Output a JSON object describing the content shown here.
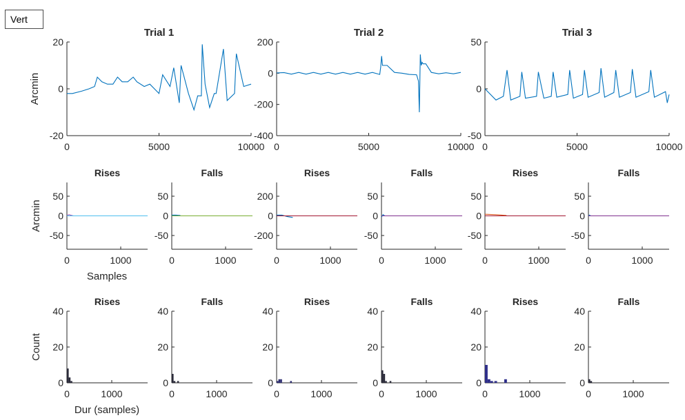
{
  "vert_label": "Vert",
  "chart_data": [
    {
      "type": "line",
      "title": "Trial 1",
      "ylabel": "Arcmin",
      "xlim": [
        0,
        10000
      ],
      "ylim": [
        -20,
        20
      ],
      "xticks": [
        "0",
        "5000",
        "10000"
      ],
      "yticks": [
        "-20",
        "0",
        "20"
      ],
      "color": "#0072bd",
      "series": [
        {
          "name": "",
          "x": [
            0,
            300,
            800,
            1200,
            1500,
            1650,
            1900,
            2200,
            2500,
            2750,
            3000,
            3300,
            3600,
            3800,
            4200,
            4500,
            5000,
            5200,
            5600,
            5800,
            6100,
            6200,
            6600,
            6900,
            7100,
            7300,
            7350,
            7500,
            7750,
            8000,
            8100,
            8500,
            8700,
            9100,
            9200,
            9600,
            10000
          ],
          "y": [
            -2,
            -2,
            -1,
            0,
            1,
            5,
            3,
            2,
            2,
            5,
            3,
            3,
            5,
            3,
            1,
            2,
            -2,
            6,
            1,
            9,
            -6,
            10,
            -2,
            -9,
            -3,
            -3,
            19,
            2,
            -8,
            -2,
            -2,
            17,
            -5,
            -2,
            15,
            1,
            2
          ]
        }
      ]
    },
    {
      "type": "line",
      "title": "Trial 2",
      "ylabel": "",
      "xlim": [
        0,
        10000
      ],
      "ylim": [
        -400,
        200
      ],
      "xticks": [
        "0",
        "5000",
        "10000"
      ],
      "yticks": [
        "-400",
        "-200",
        "0",
        "200"
      ],
      "color": "#0072bd",
      "series": [
        {
          "name": "",
          "x": [
            0,
            400,
            800,
            1200,
            1600,
            2000,
            2400,
            2800,
            3200,
            3600,
            4000,
            4400,
            4800,
            5200,
            5600,
            5650,
            5700,
            5750,
            6000,
            6400,
            6800,
            7200,
            7600,
            7700,
            7750,
            7800,
            7850,
            7900,
            7950,
            8000,
            8100,
            8400,
            8800,
            9200,
            9600,
            10000
          ],
          "y": [
            2,
            4,
            -6,
            5,
            -6,
            5,
            -6,
            5,
            -6,
            5,
            -6,
            5,
            -6,
            5,
            -8,
            40,
            110,
            50,
            50,
            5,
            0,
            -8,
            -10,
            -50,
            -250,
            120,
            50,
            70,
            60,
            60,
            60,
            5,
            -4,
            3,
            -4,
            5
          ]
        }
      ]
    },
    {
      "type": "line",
      "title": "Trial 3",
      "ylabel": "",
      "xlim": [
        0,
        10000
      ],
      "ylim": [
        -50,
        50
      ],
      "xticks": [
        "0",
        "5000",
        "10000"
      ],
      "yticks": [
        "-50",
        "0",
        "50"
      ],
      "color": "#0072bd",
      "series": [
        {
          "name": "",
          "x": [
            0,
            600,
            1000,
            1200,
            1400,
            1900,
            2000,
            2200,
            2800,
            2900,
            3200,
            3600,
            3700,
            3900,
            4500,
            4600,
            4800,
            5300,
            5400,
            5600,
            6200,
            6300,
            6500,
            7000,
            7100,
            7300,
            7900,
            8000,
            8200,
            8900,
            9000,
            9200,
            9800,
            9900,
            10000
          ],
          "y": [
            0,
            -12,
            -8,
            20,
            -12,
            -8,
            18,
            -10,
            -8,
            18,
            -10,
            -8,
            18,
            -9,
            -6,
            20,
            -10,
            -6,
            20,
            -9,
            -4,
            22,
            -9,
            -4,
            20,
            -9,
            -4,
            21,
            -9,
            -3,
            20,
            -9,
            -3,
            -15,
            -6
          ]
        }
      ]
    },
    {
      "type": "line",
      "title": "Rises",
      "ylabel": "Arcmin",
      "xlabel": "Samples",
      "xlim": [
        0,
        1500
      ],
      "ylim": [
        -85,
        85
      ],
      "xticks": [
        "0",
        "1000"
      ],
      "yticks": [
        "50",
        "0",
        "-50"
      ],
      "series": [
        {
          "name": "",
          "color": "#9b59b6",
          "x": [
            0,
            40,
            120
          ],
          "y": [
            1,
            3,
            0
          ]
        },
        {
          "name": "",
          "color": "#4dbeee",
          "x": [
            0,
            120,
            1500
          ],
          "y": [
            0,
            0,
            0
          ]
        }
      ]
    },
    {
      "type": "line",
      "title": "Falls",
      "ylabel": "",
      "xlim": [
        0,
        1500
      ],
      "ylim": [
        -85,
        85
      ],
      "xticks": [
        "0",
        "1000"
      ],
      "yticks": [
        "50",
        "0",
        "-50"
      ],
      "series": [
        {
          "name": "",
          "color": "#0072bd",
          "x": [
            0,
            80,
            160
          ],
          "y": [
            2,
            2,
            1
          ]
        },
        {
          "name": "",
          "color": "#77ac30",
          "x": [
            0,
            160,
            1500
          ],
          "y": [
            0,
            0,
            0
          ]
        }
      ]
    },
    {
      "type": "line",
      "title": "Rises",
      "ylabel": "",
      "xlim": [
        0,
        1500
      ],
      "ylim": [
        -85,
        85
      ],
      "xticks": [
        "0",
        "1000"
      ],
      "yticks": [
        "200",
        "0",
        "-200"
      ],
      "series": [
        {
          "name": "",
          "color": "#0072bd",
          "x": [
            0,
            100,
            200,
            300
          ],
          "y": [
            2,
            2,
            -2,
            -4
          ]
        },
        {
          "name": "",
          "color": "#a2142f",
          "x": [
            0,
            300,
            1500
          ],
          "y": [
            0,
            0,
            0
          ]
        }
      ]
    },
    {
      "type": "line",
      "title": "Falls",
      "ylabel": "",
      "xlim": [
        0,
        1500
      ],
      "ylim": [
        -85,
        85
      ],
      "xticks": [
        "0",
        "1000"
      ],
      "yticks": [
        "50",
        "0",
        "-50"
      ],
      "series": [
        {
          "name": "",
          "color": "#0072bd",
          "x": [
            0,
            30,
            60
          ],
          "y": [
            -3,
            3,
            0
          ]
        },
        {
          "name": "",
          "color": "#7e2f8e",
          "x": [
            0,
            60,
            1500
          ],
          "y": [
            0,
            0,
            0
          ]
        }
      ]
    },
    {
      "type": "line",
      "title": "Rises",
      "ylabel": "",
      "xlim": [
        0,
        1500
      ],
      "ylim": [
        -85,
        85
      ],
      "xticks": [
        "0",
        "1000"
      ],
      "yticks": [
        "50",
        "0",
        "-50"
      ],
      "series": [
        {
          "name": "",
          "color": "#d95319",
          "x": [
            0,
            200,
            400
          ],
          "y": [
            4,
            3,
            1
          ]
        },
        {
          "name": "",
          "color": "#a2142f",
          "x": [
            0,
            400,
            1500
          ],
          "y": [
            0,
            0,
            0
          ]
        }
      ]
    },
    {
      "type": "line",
      "title": "Falls",
      "ylabel": "",
      "xlim": [
        0,
        1500
      ],
      "ylim": [
        -85,
        85
      ],
      "xticks": [
        "0",
        "1000"
      ],
      "yticks": [
        "50",
        "0",
        "-50"
      ],
      "series": [
        {
          "name": "",
          "color": "#0072bd",
          "x": [
            0,
            20,
            40
          ],
          "y": [
            0,
            2,
            0
          ]
        },
        {
          "name": "",
          "color": "#7e2f8e",
          "x": [
            0,
            40,
            1500
          ],
          "y": [
            0,
            0,
            0
          ]
        }
      ]
    },
    {
      "type": "bar",
      "title": "Rises",
      "ylabel": "Count",
      "xlabel": "Dur (samples)",
      "xlim": [
        0,
        1800
      ],
      "ylim": [
        0,
        40
      ],
      "xticks": [
        "0",
        "1000"
      ],
      "yticks": [
        "0",
        "20",
        "40"
      ],
      "color": "#2b2b3a",
      "bin_width": 40,
      "x": [
        20,
        60,
        100
      ],
      "values": [
        8,
        3,
        1
      ]
    },
    {
      "type": "bar",
      "title": "Falls",
      "ylabel": "",
      "xlim": [
        0,
        1800
      ],
      "ylim": [
        0,
        40
      ],
      "xticks": [
        "0",
        "1000"
      ],
      "yticks": [
        "0",
        "20",
        "40"
      ],
      "color": "#2b2b3a",
      "bin_width": 40,
      "x": [
        20,
        60,
        140
      ],
      "values": [
        5,
        1,
        1
      ]
    },
    {
      "type": "bar",
      "title": "Rises",
      "ylabel": "",
      "xlim": [
        0,
        1800
      ],
      "ylim": [
        0,
        40
      ],
      "xticks": [
        "0",
        "1000"
      ],
      "yticks": [
        "0",
        "20",
        "40"
      ],
      "color": "#2e2e72",
      "bin_width": 40,
      "x": [
        20,
        60,
        100,
        320
      ],
      "values": [
        1,
        2,
        2,
        1
      ]
    },
    {
      "type": "bar",
      "title": "Falls",
      "ylabel": "",
      "xlim": [
        0,
        1800
      ],
      "ylim": [
        0,
        40
      ],
      "xticks": [
        "0",
        "1000"
      ],
      "yticks": [
        "0",
        "20",
        "40"
      ],
      "color": "#2b2b3a",
      "bin_width": 40,
      "x": [
        20,
        60,
        100,
        200
      ],
      "values": [
        7,
        5,
        1,
        1
      ]
    },
    {
      "type": "bar",
      "title": "Rises",
      "ylabel": "",
      "xlim": [
        0,
        1800
      ],
      "ylim": [
        0,
        40
      ],
      "xticks": [
        "0",
        "1000"
      ],
      "yticks": [
        "0",
        "20",
        "40"
      ],
      "color": "#2e2e8a",
      "bin_width": 60,
      "x": [
        30,
        90,
        150,
        240,
        460
      ],
      "values": [
        10,
        2,
        1,
        1,
        2
      ]
    },
    {
      "type": "bar",
      "title": "Falls",
      "ylabel": "",
      "xlim": [
        0,
        1800
      ],
      "ylim": [
        0,
        40
      ],
      "xticks": [
        "0",
        "1000"
      ],
      "yticks": [
        "0",
        "20",
        "40"
      ],
      "color": "#2b2b3a",
      "bin_width": 40,
      "x": [
        20,
        60
      ],
      "values": [
        2,
        1
      ]
    }
  ]
}
